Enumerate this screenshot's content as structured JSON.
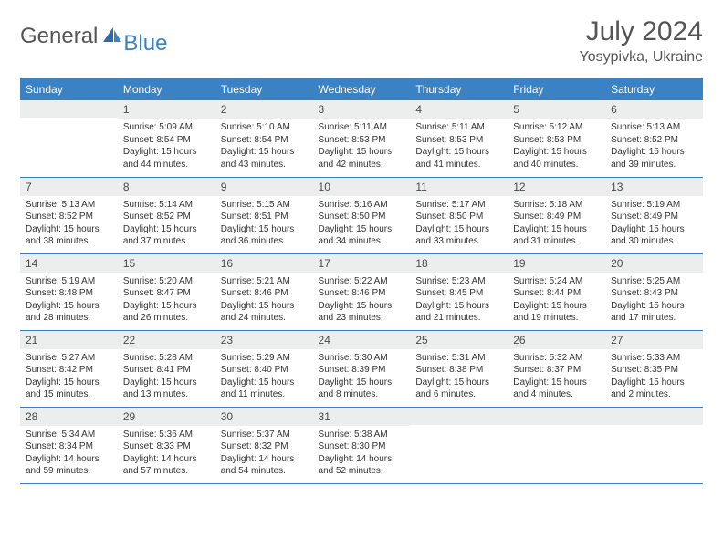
{
  "logo": {
    "general": "General",
    "blue": "Blue"
  },
  "title": "July 2024",
  "location": "Yosypivka, Ukraine",
  "colors": {
    "header_bg": "#3b82c4",
    "header_text": "#ffffff",
    "daynum_bg": "#eceded",
    "border": "#3b82c4",
    "text": "#333333",
    "title_text": "#555555"
  },
  "days": [
    "Sunday",
    "Monday",
    "Tuesday",
    "Wednesday",
    "Thursday",
    "Friday",
    "Saturday"
  ],
  "weeks": [
    [
      {
        "n": "",
        "sr": "",
        "ss": "",
        "dl": ""
      },
      {
        "n": "1",
        "sr": "Sunrise: 5:09 AM",
        "ss": "Sunset: 8:54 PM",
        "dl": "Daylight: 15 hours and 44 minutes."
      },
      {
        "n": "2",
        "sr": "Sunrise: 5:10 AM",
        "ss": "Sunset: 8:54 PM",
        "dl": "Daylight: 15 hours and 43 minutes."
      },
      {
        "n": "3",
        "sr": "Sunrise: 5:11 AM",
        "ss": "Sunset: 8:53 PM",
        "dl": "Daylight: 15 hours and 42 minutes."
      },
      {
        "n": "4",
        "sr": "Sunrise: 5:11 AM",
        "ss": "Sunset: 8:53 PM",
        "dl": "Daylight: 15 hours and 41 minutes."
      },
      {
        "n": "5",
        "sr": "Sunrise: 5:12 AM",
        "ss": "Sunset: 8:53 PM",
        "dl": "Daylight: 15 hours and 40 minutes."
      },
      {
        "n": "6",
        "sr": "Sunrise: 5:13 AM",
        "ss": "Sunset: 8:52 PM",
        "dl": "Daylight: 15 hours and 39 minutes."
      }
    ],
    [
      {
        "n": "7",
        "sr": "Sunrise: 5:13 AM",
        "ss": "Sunset: 8:52 PM",
        "dl": "Daylight: 15 hours and 38 minutes."
      },
      {
        "n": "8",
        "sr": "Sunrise: 5:14 AM",
        "ss": "Sunset: 8:52 PM",
        "dl": "Daylight: 15 hours and 37 minutes."
      },
      {
        "n": "9",
        "sr": "Sunrise: 5:15 AM",
        "ss": "Sunset: 8:51 PM",
        "dl": "Daylight: 15 hours and 36 minutes."
      },
      {
        "n": "10",
        "sr": "Sunrise: 5:16 AM",
        "ss": "Sunset: 8:50 PM",
        "dl": "Daylight: 15 hours and 34 minutes."
      },
      {
        "n": "11",
        "sr": "Sunrise: 5:17 AM",
        "ss": "Sunset: 8:50 PM",
        "dl": "Daylight: 15 hours and 33 minutes."
      },
      {
        "n": "12",
        "sr": "Sunrise: 5:18 AM",
        "ss": "Sunset: 8:49 PM",
        "dl": "Daylight: 15 hours and 31 minutes."
      },
      {
        "n": "13",
        "sr": "Sunrise: 5:19 AM",
        "ss": "Sunset: 8:49 PM",
        "dl": "Daylight: 15 hours and 30 minutes."
      }
    ],
    [
      {
        "n": "14",
        "sr": "Sunrise: 5:19 AM",
        "ss": "Sunset: 8:48 PM",
        "dl": "Daylight: 15 hours and 28 minutes."
      },
      {
        "n": "15",
        "sr": "Sunrise: 5:20 AM",
        "ss": "Sunset: 8:47 PM",
        "dl": "Daylight: 15 hours and 26 minutes."
      },
      {
        "n": "16",
        "sr": "Sunrise: 5:21 AM",
        "ss": "Sunset: 8:46 PM",
        "dl": "Daylight: 15 hours and 24 minutes."
      },
      {
        "n": "17",
        "sr": "Sunrise: 5:22 AM",
        "ss": "Sunset: 8:46 PM",
        "dl": "Daylight: 15 hours and 23 minutes."
      },
      {
        "n": "18",
        "sr": "Sunrise: 5:23 AM",
        "ss": "Sunset: 8:45 PM",
        "dl": "Daylight: 15 hours and 21 minutes."
      },
      {
        "n": "19",
        "sr": "Sunrise: 5:24 AM",
        "ss": "Sunset: 8:44 PM",
        "dl": "Daylight: 15 hours and 19 minutes."
      },
      {
        "n": "20",
        "sr": "Sunrise: 5:25 AM",
        "ss": "Sunset: 8:43 PM",
        "dl": "Daylight: 15 hours and 17 minutes."
      }
    ],
    [
      {
        "n": "21",
        "sr": "Sunrise: 5:27 AM",
        "ss": "Sunset: 8:42 PM",
        "dl": "Daylight: 15 hours and 15 minutes."
      },
      {
        "n": "22",
        "sr": "Sunrise: 5:28 AM",
        "ss": "Sunset: 8:41 PM",
        "dl": "Daylight: 15 hours and 13 minutes."
      },
      {
        "n": "23",
        "sr": "Sunrise: 5:29 AM",
        "ss": "Sunset: 8:40 PM",
        "dl": "Daylight: 15 hours and 11 minutes."
      },
      {
        "n": "24",
        "sr": "Sunrise: 5:30 AM",
        "ss": "Sunset: 8:39 PM",
        "dl": "Daylight: 15 hours and 8 minutes."
      },
      {
        "n": "25",
        "sr": "Sunrise: 5:31 AM",
        "ss": "Sunset: 8:38 PM",
        "dl": "Daylight: 15 hours and 6 minutes."
      },
      {
        "n": "26",
        "sr": "Sunrise: 5:32 AM",
        "ss": "Sunset: 8:37 PM",
        "dl": "Daylight: 15 hours and 4 minutes."
      },
      {
        "n": "27",
        "sr": "Sunrise: 5:33 AM",
        "ss": "Sunset: 8:35 PM",
        "dl": "Daylight: 15 hours and 2 minutes."
      }
    ],
    [
      {
        "n": "28",
        "sr": "Sunrise: 5:34 AM",
        "ss": "Sunset: 8:34 PM",
        "dl": "Daylight: 14 hours and 59 minutes."
      },
      {
        "n": "29",
        "sr": "Sunrise: 5:36 AM",
        "ss": "Sunset: 8:33 PM",
        "dl": "Daylight: 14 hours and 57 minutes."
      },
      {
        "n": "30",
        "sr": "Sunrise: 5:37 AM",
        "ss": "Sunset: 8:32 PM",
        "dl": "Daylight: 14 hours and 54 minutes."
      },
      {
        "n": "31",
        "sr": "Sunrise: 5:38 AM",
        "ss": "Sunset: 8:30 PM",
        "dl": "Daylight: 14 hours and 52 minutes."
      },
      {
        "n": "",
        "sr": "",
        "ss": "",
        "dl": ""
      },
      {
        "n": "",
        "sr": "",
        "ss": "",
        "dl": ""
      },
      {
        "n": "",
        "sr": "",
        "ss": "",
        "dl": ""
      }
    ]
  ]
}
